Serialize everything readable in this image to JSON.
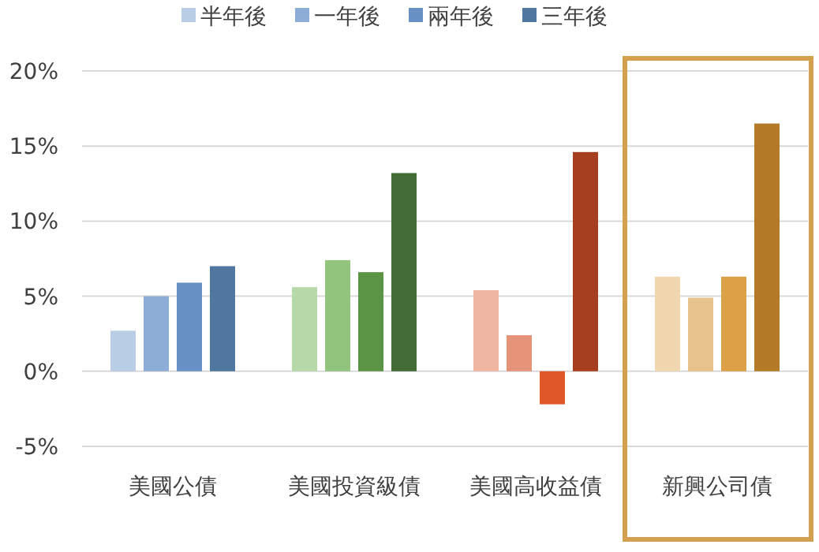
{
  "chart_data": {
    "type": "bar",
    "categories": [
      "美國公債",
      "美國投資級債",
      "美國高收益債",
      "新興公司債"
    ],
    "series": [
      {
        "name": "半年後",
        "color": "#b9cde4",
        "colors": [
          "#b9cde4",
          "#b7d8a9",
          "#efb7a2",
          "#f0d7b0"
        ],
        "values": [
          2.7,
          5.6,
          5.4,
          6.3
        ]
      },
      {
        "name": "一年後",
        "color": "#8eadd6",
        "colors": [
          "#8eadd6",
          "#93c47d",
          "#e69479",
          "#e8c28c"
        ],
        "values": [
          5.0,
          7.4,
          2.4,
          4.9
        ]
      },
      {
        "name": "兩年後",
        "color": "#6791c4",
        "colors": [
          "#6791c4",
          "#5a9444",
          "#e0582a",
          "#dca046"
        ],
        "values": [
          5.9,
          6.6,
          -2.2,
          6.3
        ]
      },
      {
        "name": "三年後",
        "color": "#4f77a0",
        "colors": [
          "#4f77a0",
          "#436b36",
          "#a63f1f",
          "#b47a27"
        ],
        "values": [
          7.0,
          13.2,
          14.6,
          16.5
        ]
      }
    ],
    "ylim": [
      -5,
      20
    ],
    "yticks": [
      {
        "value": -5,
        "label": "-5%"
      },
      {
        "value": 0,
        "label": "0%"
      },
      {
        "value": 5,
        "label": "5%"
      },
      {
        "value": 10,
        "label": "10%"
      },
      {
        "value": 15,
        "label": "15%"
      },
      {
        "value": 20,
        "label": "20%"
      }
    ],
    "grid": "y",
    "legend": "top"
  }
}
